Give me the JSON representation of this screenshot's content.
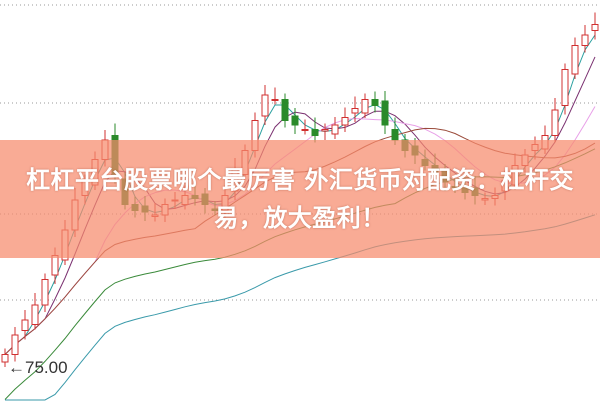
{
  "chart_data": {
    "type": "candlestick",
    "price_label": "75.00",
    "grid": "dotted horizontal",
    "colors": {
      "up": "#d03030",
      "down": "#2a8a2a",
      "ma": [
        "#2aa0a0",
        "#7a3070",
        "#e8a0e8",
        "#9a4a3a",
        "#3a8a3a",
        "#3a9aaa"
      ]
    },
    "closes": [
      75.9,
      77.2,
      78.2,
      79.2,
      80.9,
      82.5,
      84.2,
      86.2,
      87.5,
      88.9,
      90.2,
      87.9,
      85.9,
      85.5,
      85.4,
      85.2,
      85.9,
      86.2,
      86.5,
      86.3,
      85.9,
      85.5,
      86.5,
      88.2,
      89.5,
      91.5,
      93.2,
      92.9,
      91.5,
      91.2,
      90.9,
      90.5,
      90.9,
      91.2,
      91.7,
      92.3,
      92.9,
      92.5,
      91.2,
      90.2,
      89.5,
      89.2,
      88.5,
      87.9,
      87.4,
      87.0,
      86.7,
      86.5,
      86.3,
      86.5,
      87.5,
      88.5,
      89.2,
      89.9,
      90.5,
      92.2,
      94.9,
      96.5,
      97.2,
      97.9
    ]
  },
  "banner": {
    "line1": "杠杠平台股票哪个最厉害 外汇货币对配资：杠杆交",
    "line2": "易，放大盈利！"
  }
}
